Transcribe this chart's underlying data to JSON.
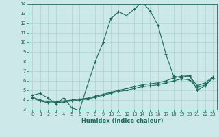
{
  "xlabel": "Humidex (Indice chaleur)",
  "ylabel": "",
  "xlim": [
    -0.5,
    23.5
  ],
  "ylim": [
    3,
    14
  ],
  "yticks": [
    3,
    4,
    5,
    6,
    7,
    8,
    9,
    10,
    11,
    12,
    13,
    14
  ],
  "xticks": [
    0,
    1,
    2,
    3,
    4,
    5,
    6,
    7,
    8,
    9,
    10,
    11,
    12,
    13,
    14,
    15,
    16,
    17,
    18,
    19,
    20,
    21,
    22,
    23
  ],
  "bg_color": "#cce8e8",
  "line_color": "#1a6b5a",
  "grid_color": "#a8cccc",
  "line1_x": [
    0,
    1,
    2,
    3,
    4,
    5,
    6,
    7,
    8,
    9,
    10,
    11,
    12,
    13,
    14,
    15,
    16,
    17,
    18,
    19,
    20,
    21,
    22,
    23
  ],
  "line1_y": [
    4.5,
    4.7,
    4.2,
    3.6,
    4.2,
    3.2,
    2.9,
    5.5,
    8.0,
    10.0,
    12.5,
    13.2,
    12.8,
    13.5,
    14.2,
    13.3,
    11.8,
    8.8,
    6.5,
    6.3,
    6.6,
    5.0,
    5.5,
    6.3
  ],
  "line2_x": [
    0,
    1,
    2,
    3,
    4,
    5,
    6,
    7,
    8,
    9,
    10,
    11,
    12,
    13,
    14,
    15,
    16,
    17,
    18,
    19,
    20,
    21,
    22,
    23
  ],
  "line2_y": [
    4.3,
    4.0,
    3.8,
    3.8,
    3.9,
    4.0,
    4.1,
    4.2,
    4.4,
    4.6,
    4.8,
    5.0,
    5.2,
    5.4,
    5.6,
    5.7,
    5.8,
    6.0,
    6.3,
    6.5,
    6.5,
    5.5,
    5.8,
    6.4
  ],
  "line3_x": [
    0,
    1,
    2,
    3,
    4,
    5,
    6,
    7,
    8,
    9,
    10,
    11,
    12,
    13,
    14,
    15,
    16,
    17,
    18,
    19,
    20,
    21,
    22,
    23
  ],
  "line3_y": [
    4.2,
    3.9,
    3.7,
    3.7,
    3.8,
    3.9,
    4.0,
    4.1,
    4.3,
    4.5,
    4.7,
    4.9,
    5.0,
    5.2,
    5.4,
    5.5,
    5.6,
    5.8,
    6.0,
    6.2,
    6.1,
    5.3,
    5.6,
    6.3
  ]
}
